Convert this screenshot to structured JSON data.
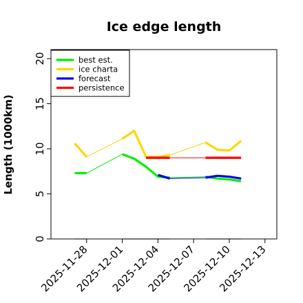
{
  "chart_data": {
    "type": "line",
    "title": "Ice edge length",
    "xlabel": "",
    "ylabel": "Length (1000km)",
    "ylim": [
      0,
      21
    ],
    "xlim": [
      "2025-11-25",
      "2025-12-14"
    ],
    "yticks": [
      0,
      5,
      10,
      15,
      20
    ],
    "xticks": [
      "2025-11-28",
      "2025-12-01",
      "2025-12-04",
      "2025-12-07",
      "2025-12-10",
      "2025-12-13"
    ],
    "highlight_tick": "2025-12-04",
    "highlight_color": "#008000",
    "grid": false,
    "legend_position": "top-left",
    "series": [
      {
        "name": "best est.",
        "color": "#00ee00",
        "style": "solid",
        "bold_segments": [
          [
            [
              "2025-11-27",
              7.3
            ],
            [
              "2025-11-28",
              7.3
            ]
          ],
          [
            [
              "2025-12-01",
              9.4
            ],
            [
              "2025-12-02",
              8.9
            ],
            [
              "2025-12-03",
              8.0
            ],
            [
              "2025-12-04",
              6.9
            ],
            [
              "2025-12-05",
              6.8
            ]
          ],
          [
            [
              "2025-12-08",
              6.9
            ],
            [
              "2025-12-09",
              6.7
            ],
            [
              "2025-12-10",
              6.6
            ],
            [
              "2025-12-11",
              6.4
            ]
          ]
        ],
        "thin_segments": [
          [
            [
              "2025-11-28",
              7.3
            ],
            [
              "2025-12-01",
              9.4
            ]
          ],
          [
            [
              "2025-12-05",
              6.8
            ],
            [
              "2025-12-08",
              6.9
            ]
          ]
        ]
      },
      {
        "name": "ice charta",
        "color": "#ffd700",
        "style": "solid",
        "bold_segments": [
          [
            [
              "2025-11-27",
              10.6
            ],
            [
              "2025-11-28",
              9.1
            ]
          ],
          [
            [
              "2025-12-01",
              11.1
            ],
            [
              "2025-12-02",
              12.0
            ],
            [
              "2025-12-03",
              9.1
            ],
            [
              "2025-12-04",
              9.1
            ],
            [
              "2025-12-05",
              9.3
            ]
          ],
          [
            [
              "2025-12-08",
              10.7
            ],
            [
              "2025-12-09",
              9.9
            ],
            [
              "2025-12-10",
              9.8
            ],
            [
              "2025-12-11",
              10.9
            ]
          ]
        ],
        "thin_segments": [
          [
            [
              "2025-11-28",
              9.1
            ],
            [
              "2025-12-01",
              11.1
            ]
          ],
          [
            [
              "2025-12-05",
              9.3
            ],
            [
              "2025-12-08",
              10.7
            ]
          ]
        ]
      },
      {
        "name": "forecast",
        "color": "#0000ee",
        "style": "solid",
        "bold_segments": [
          [
            [
              "2025-12-04",
              7.1
            ],
            [
              "2025-12-05",
              6.7
            ]
          ],
          [
            [
              "2025-12-08",
              6.8
            ],
            [
              "2025-12-09",
              7.0
            ],
            [
              "2025-12-10",
              6.9
            ],
            [
              "2025-12-11",
              6.7
            ]
          ]
        ],
        "thin_segments": [
          [
            [
              "2025-12-05",
              6.7
            ],
            [
              "2025-12-08",
              6.8
            ]
          ]
        ]
      },
      {
        "name": "persistence",
        "color": "#ff0000",
        "style": "solid",
        "bold_segments": [
          [
            [
              "2025-12-03",
              9.0
            ],
            [
              "2025-12-05",
              9.0
            ]
          ],
          [
            [
              "2025-12-08",
              9.0
            ],
            [
              "2025-12-11",
              9.0
            ]
          ]
        ],
        "thin_segments": [
          [
            [
              "2025-12-05",
              9.0
            ],
            [
              "2025-12-08",
              9.0
            ]
          ]
        ]
      }
    ],
    "zero_markers": {
      "color": "#999999",
      "y": 0,
      "segments": [
        [
          "2025-11-27",
          "2025-11-28"
        ],
        [
          "2025-12-01",
          "2025-12-05"
        ],
        [
          "2025-12-08",
          "2025-12-11"
        ]
      ]
    }
  }
}
